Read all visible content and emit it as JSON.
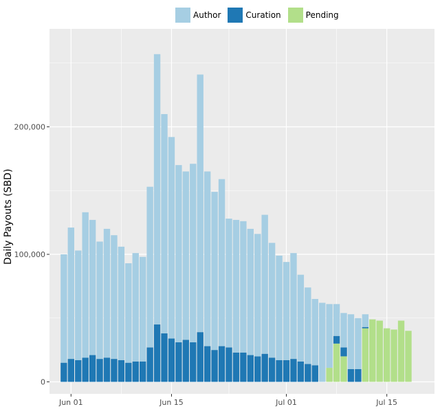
{
  "chart_data": {
    "type": "bar",
    "stacked": true,
    "ylabel": "Daily Payouts (SBD)",
    "xlabel": "",
    "ylim": [
      0,
      280000
    ],
    "y_ticks": [
      0,
      100000,
      200000
    ],
    "y_tick_labels": [
      "0",
      "100,000",
      "200,000"
    ],
    "x_start": "2017-05-31",
    "x_tick_labels": [
      "Jun 01",
      "Jun 15",
      "Jul 01",
      "Jul 15"
    ],
    "x_ticks": [
      "2017-06-01",
      "2017-06-15",
      "2017-07-01",
      "2017-07-15"
    ],
    "grid": true,
    "legend_position": "top",
    "colors": {
      "Author": "#a6cee3",
      "Curation": "#1f78b4",
      "Pending": "#b2df8a",
      "panel": "#ebebeb",
      "grid": "#ffffff"
    },
    "dates": [
      "2017-05-31",
      "2017-06-01",
      "2017-06-02",
      "2017-06-03",
      "2017-06-04",
      "2017-06-05",
      "2017-06-06",
      "2017-06-07",
      "2017-06-08",
      "2017-06-09",
      "2017-06-10",
      "2017-06-11",
      "2017-06-12",
      "2017-06-13",
      "2017-06-14",
      "2017-06-15",
      "2017-06-16",
      "2017-06-17",
      "2017-06-18",
      "2017-06-19",
      "2017-06-20",
      "2017-06-21",
      "2017-06-22",
      "2017-06-23",
      "2017-06-24",
      "2017-06-25",
      "2017-06-26",
      "2017-06-27",
      "2017-06-28",
      "2017-06-29",
      "2017-06-30",
      "2017-07-01",
      "2017-07-02",
      "2017-07-03",
      "2017-07-04",
      "2017-07-05",
      "2017-07-06",
      "2017-07-07",
      "2017-07-08",
      "2017-07-09",
      "2017-07-10",
      "2017-07-11",
      "2017-07-12",
      "2017-07-13",
      "2017-07-14",
      "2017-07-15",
      "2017-07-16",
      "2017-07-17",
      "2017-07-18"
    ],
    "series": [
      {
        "name": "Pending",
        "values": [
          0,
          0,
          0,
          0,
          0,
          0,
          0,
          0,
          0,
          0,
          0,
          0,
          0,
          0,
          0,
          0,
          0,
          0,
          0,
          0,
          0,
          0,
          0,
          0,
          0,
          0,
          0,
          0,
          0,
          0,
          0,
          0,
          0,
          0,
          0,
          0,
          0,
          11000,
          30000,
          20000,
          0,
          0,
          42000,
          49000,
          48000,
          42000,
          41000,
          48000,
          40000
        ]
      },
      {
        "name": "Curation",
        "values": [
          15000,
          18000,
          17000,
          19000,
          21000,
          18000,
          19000,
          18000,
          17000,
          15000,
          16000,
          16000,
          27000,
          45000,
          38000,
          34000,
          31000,
          33000,
          31000,
          39000,
          28000,
          25000,
          28000,
          27000,
          23000,
          23000,
          21000,
          20000,
          22000,
          19000,
          17000,
          17000,
          18000,
          16000,
          14000,
          13000,
          0,
          0,
          6000,
          7000,
          10000,
          10000,
          1000,
          0,
          0,
          0,
          0,
          0,
          0
        ]
      },
      {
        "name": "Author",
        "values": [
          85000,
          103000,
          86000,
          114000,
          106000,
          92000,
          101000,
          97000,
          89000,
          78000,
          85000,
          82000,
          126000,
          212000,
          172000,
          158000,
          139000,
          132000,
          140000,
          202000,
          137000,
          124000,
          131000,
          101000,
          104000,
          103000,
          99000,
          96000,
          109000,
          90000,
          82000,
          77000,
          83000,
          68000,
          60000,
          52000,
          62000,
          50000,
          25000,
          27000,
          43000,
          40000,
          10000,
          0,
          0,
          0,
          0,
          0,
          0
        ]
      }
    ]
  }
}
